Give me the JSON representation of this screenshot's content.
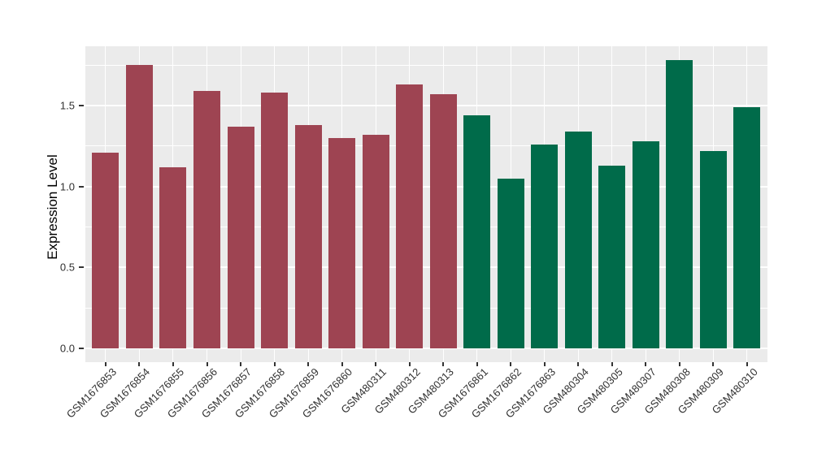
{
  "figure": {
    "background": "#FFFFFF",
    "panel_background": "#EBEBEB",
    "grid_color": "#FFFFFF",
    "tick_mark_color": "#333333",
    "tick_label_color": "#303030",
    "axis_title_color": "#000000"
  },
  "chart_data": {
    "type": "bar",
    "title": "",
    "xlabel": "",
    "ylabel": "Expression Level",
    "ylim": [
      0,
      1.86
    ],
    "grid": true,
    "legend_position": "none",
    "y_major_ticks": [
      0,
      0.5,
      1.0,
      1.5
    ],
    "y_tick_labels": [
      "0.0",
      "0.5",
      "1.0",
      "1.5"
    ],
    "y_minor_ticks": [
      0.25,
      0.75,
      1.25,
      1.75
    ],
    "categories": [
      "GSM1676853",
      "GSM1676854",
      "GSM1676855",
      "GSM1676856",
      "GSM1676857",
      "GSM1676858",
      "GSM1676859",
      "GSM1676860",
      "GSM480311",
      "GSM480312",
      "GSM480313",
      "GSM1676861",
      "GSM1676862",
      "GSM1676863",
      "GSM480304",
      "GSM480305",
      "GSM480307",
      "GSM480308",
      "GSM480309",
      "GSM480310"
    ],
    "values": [
      1.21,
      1.75,
      1.12,
      1.59,
      1.37,
      1.58,
      1.38,
      1.3,
      1.32,
      1.63,
      1.57,
      1.44,
      1.05,
      1.26,
      1.34,
      1.13,
      1.28,
      1.78,
      1.22,
      1.49
    ],
    "bar_groups": [
      0,
      0,
      0,
      0,
      0,
      0,
      0,
      0,
      0,
      0,
      0,
      1,
      1,
      1,
      1,
      1,
      1,
      1,
      1,
      1
    ],
    "group_colors": [
      "#9E4452",
      "#006B4A"
    ]
  }
}
